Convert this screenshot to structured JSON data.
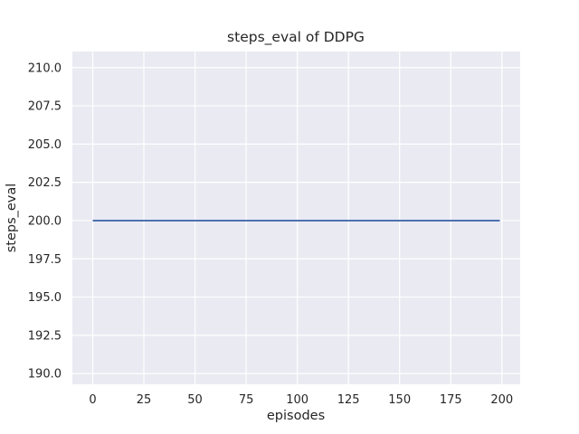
{
  "figure": {
    "background": "#ffffff",
    "axes_background": "#eaeaf2",
    "grid_color": "#ffffff",
    "text_color": "#262626"
  },
  "chart_data": {
    "type": "line",
    "title": "steps_eval of DDPG",
    "xlabel": "episodes",
    "ylabel": "steps_eval",
    "x_ticks": [
      0,
      25,
      50,
      75,
      100,
      125,
      150,
      175,
      200
    ],
    "x_tick_labels": [
      "0",
      "25",
      "50",
      "75",
      "100",
      "125",
      "150",
      "175",
      "200"
    ],
    "y_ticks": [
      190.0,
      192.5,
      195.0,
      197.5,
      200.0,
      202.5,
      205.0,
      207.5,
      210.0
    ],
    "y_tick_labels": [
      "190.0",
      "192.5",
      "195.0",
      "197.5",
      "200.0",
      "202.5",
      "205.0",
      "207.5",
      "210.0"
    ],
    "xlim": [
      -9.95,
      208.95
    ],
    "ylim": [
      189.3,
      211.05
    ],
    "grid": true,
    "legend": null,
    "series": [
      {
        "name": "DDPG",
        "color": "#4c72b0",
        "x": [
          0,
          199
        ],
        "y": [
          200,
          200
        ]
      }
    ]
  }
}
